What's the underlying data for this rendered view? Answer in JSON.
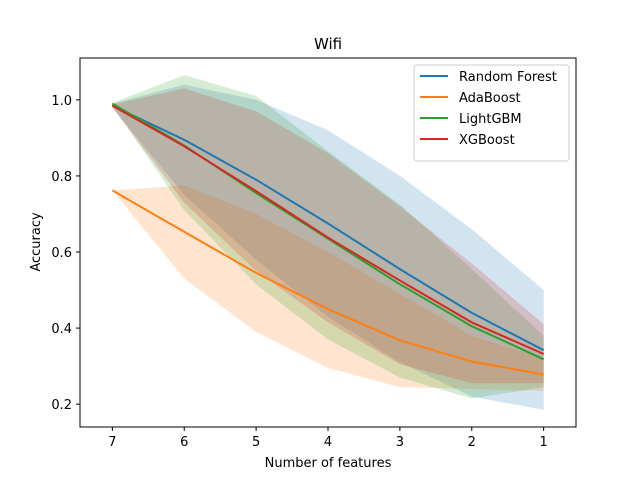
{
  "chart_data": {
    "type": "line",
    "title": "Wifi",
    "xlabel": "Number of features",
    "ylabel": "Accuracy",
    "x": [
      7,
      6,
      5,
      4,
      3,
      2,
      1
    ],
    "x_ticks": [
      "7",
      "6",
      "5",
      "4",
      "3",
      "2",
      "1"
    ],
    "x_inverted": true,
    "ylim": [
      0.14,
      1.11
    ],
    "y_ticks": [
      "0.2",
      "0.4",
      "0.6",
      "0.8",
      "1.0"
    ],
    "grid": false,
    "legend_position": "top-right",
    "series": [
      {
        "name": "Random Forest",
        "color": "#1f77b4",
        "values": [
          0.985,
          0.895,
          0.79,
          0.675,
          0.555,
          0.44,
          0.342
        ],
        "upper": [
          0.99,
          1.04,
          1.0,
          0.92,
          0.8,
          0.66,
          0.5
        ],
        "lower": [
          0.98,
          0.75,
          0.58,
          0.43,
          0.31,
          0.22,
          0.185
        ]
      },
      {
        "name": "AdaBoost",
        "color": "#ff7f0e",
        "values": [
          0.762,
          0.653,
          0.545,
          0.45,
          0.368,
          0.312,
          0.278
        ],
        "upper": [
          0.762,
          0.775,
          0.7,
          0.6,
          0.49,
          0.38,
          0.32
        ],
        "lower": [
          0.762,
          0.53,
          0.39,
          0.295,
          0.245,
          0.24,
          0.235
        ]
      },
      {
        "name": "LightGBM",
        "color": "#2ca02c",
        "values": [
          0.99,
          0.88,
          0.755,
          0.635,
          0.515,
          0.405,
          0.318
        ],
        "upper": [
          0.992,
          1.065,
          1.01,
          0.865,
          0.725,
          0.555,
          0.38
        ],
        "lower": [
          0.985,
          0.71,
          0.515,
          0.37,
          0.27,
          0.215,
          0.245
        ]
      },
      {
        "name": "XGBoost",
        "color": "#d62728",
        "values": [
          0.985,
          0.878,
          0.76,
          0.638,
          0.525,
          0.415,
          0.332
        ],
        "upper": [
          0.988,
          1.03,
          0.97,
          0.86,
          0.72,
          0.57,
          0.41
        ],
        "lower": [
          0.98,
          0.73,
          0.55,
          0.415,
          0.305,
          0.255,
          0.255
        ]
      }
    ]
  }
}
